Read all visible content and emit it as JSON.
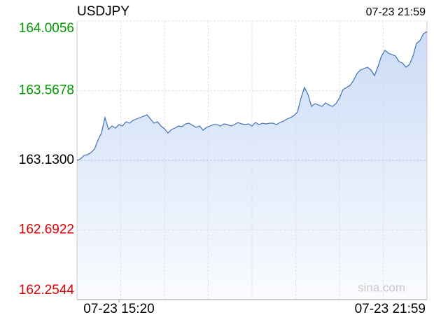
{
  "chart_data": {
    "type": "line",
    "title": "USDJPY",
    "updated": "07-23 21:59",
    "watermark": "sina.com",
    "categories": [
      null,
      null,
      null,
      null,
      null,
      null,
      null,
      null,
      null,
      null,
      null,
      null,
      "07-23 15:20",
      null,
      null,
      null,
      null,
      null,
      null,
      null,
      null,
      null,
      null,
      null,
      null,
      null,
      null,
      null,
      null,
      null,
      null,
      null,
      null,
      null,
      null,
      null,
      null,
      null,
      null,
      null,
      null,
      null,
      null,
      null,
      null,
      null,
      null,
      null,
      null,
      null,
      null,
      null,
      null,
      null,
      null,
      null,
      null,
      null,
      null,
      null,
      null,
      null,
      null,
      null,
      null,
      null,
      null,
      null,
      null,
      null,
      null,
      null,
      null,
      null,
      null,
      null,
      null,
      null,
      null,
      null,
      null,
      null,
      null,
      null,
      null,
      null,
      null,
      null,
      null,
      null,
      null,
      null,
      null,
      null,
      null,
      null,
      null,
      null,
      null,
      null,
      "07-23 21:59"
    ],
    "series": [
      {
        "name": "USDJPY",
        "color": "#3d6fb6",
        "values": [
          163.13,
          163.1388,
          163.1608,
          163.1652,
          163.1784,
          163.2004,
          163.2576,
          163.3016,
          163.3984,
          163.3236,
          163.3456,
          163.3324,
          163.3544,
          163.3456,
          163.372,
          163.3632,
          163.3808,
          163.3896,
          163.3984,
          163.4072,
          163.416,
          163.3896,
          163.3632,
          163.372,
          163.3456,
          163.328,
          163.3016,
          163.3236,
          163.3324,
          163.3456,
          163.3412,
          163.3588,
          163.3632,
          163.35,
          163.3368,
          163.3456,
          163.3192,
          163.3368,
          163.3456,
          163.3544,
          163.3544,
          163.3456,
          163.3588,
          163.3544,
          163.3456,
          163.3544,
          163.3676,
          163.3588,
          163.3544,
          163.3588,
          163.3456,
          163.3676,
          163.3544,
          163.3632,
          163.3588,
          163.3632,
          163.3632,
          163.3544,
          163.3676,
          163.3764,
          163.3896,
          163.3984,
          163.4116,
          163.4336,
          163.5216,
          163.5876,
          163.5436,
          163.4688,
          163.4864,
          163.4776,
          163.4688,
          163.4908,
          163.4776,
          163.4688,
          163.4864,
          163.5216,
          163.5744,
          163.5876,
          163.6008,
          163.6316,
          163.6756,
          163.6976,
          163.7064,
          163.7152,
          163.6976,
          163.6624,
          163.7196,
          163.7856,
          163.8208,
          163.8032,
          163.7944,
          163.7856,
          163.7504,
          163.7416,
          163.7152,
          163.7328,
          163.7856,
          163.8648,
          163.8824,
          163.9264,
          163.9396
        ]
      }
    ],
    "prev_close": 163.13,
    "ylim": [
      162.2544,
      164.0056
    ],
    "yticks": [
      {
        "value": 162.2544,
        "label": "162.2544"
      },
      {
        "value": 162.6922,
        "label": "162.6922"
      },
      {
        "value": 163.13,
        "label": "163.1300"
      },
      {
        "value": 163.5678,
        "label": "163.5678"
      },
      {
        "value": 164.0056,
        "label": "164.0056"
      }
    ],
    "grid": true,
    "up_color": "#009900",
    "flat_color": "#000000",
    "down_color": "#dd0000",
    "area_color": "#c9daf6"
  }
}
